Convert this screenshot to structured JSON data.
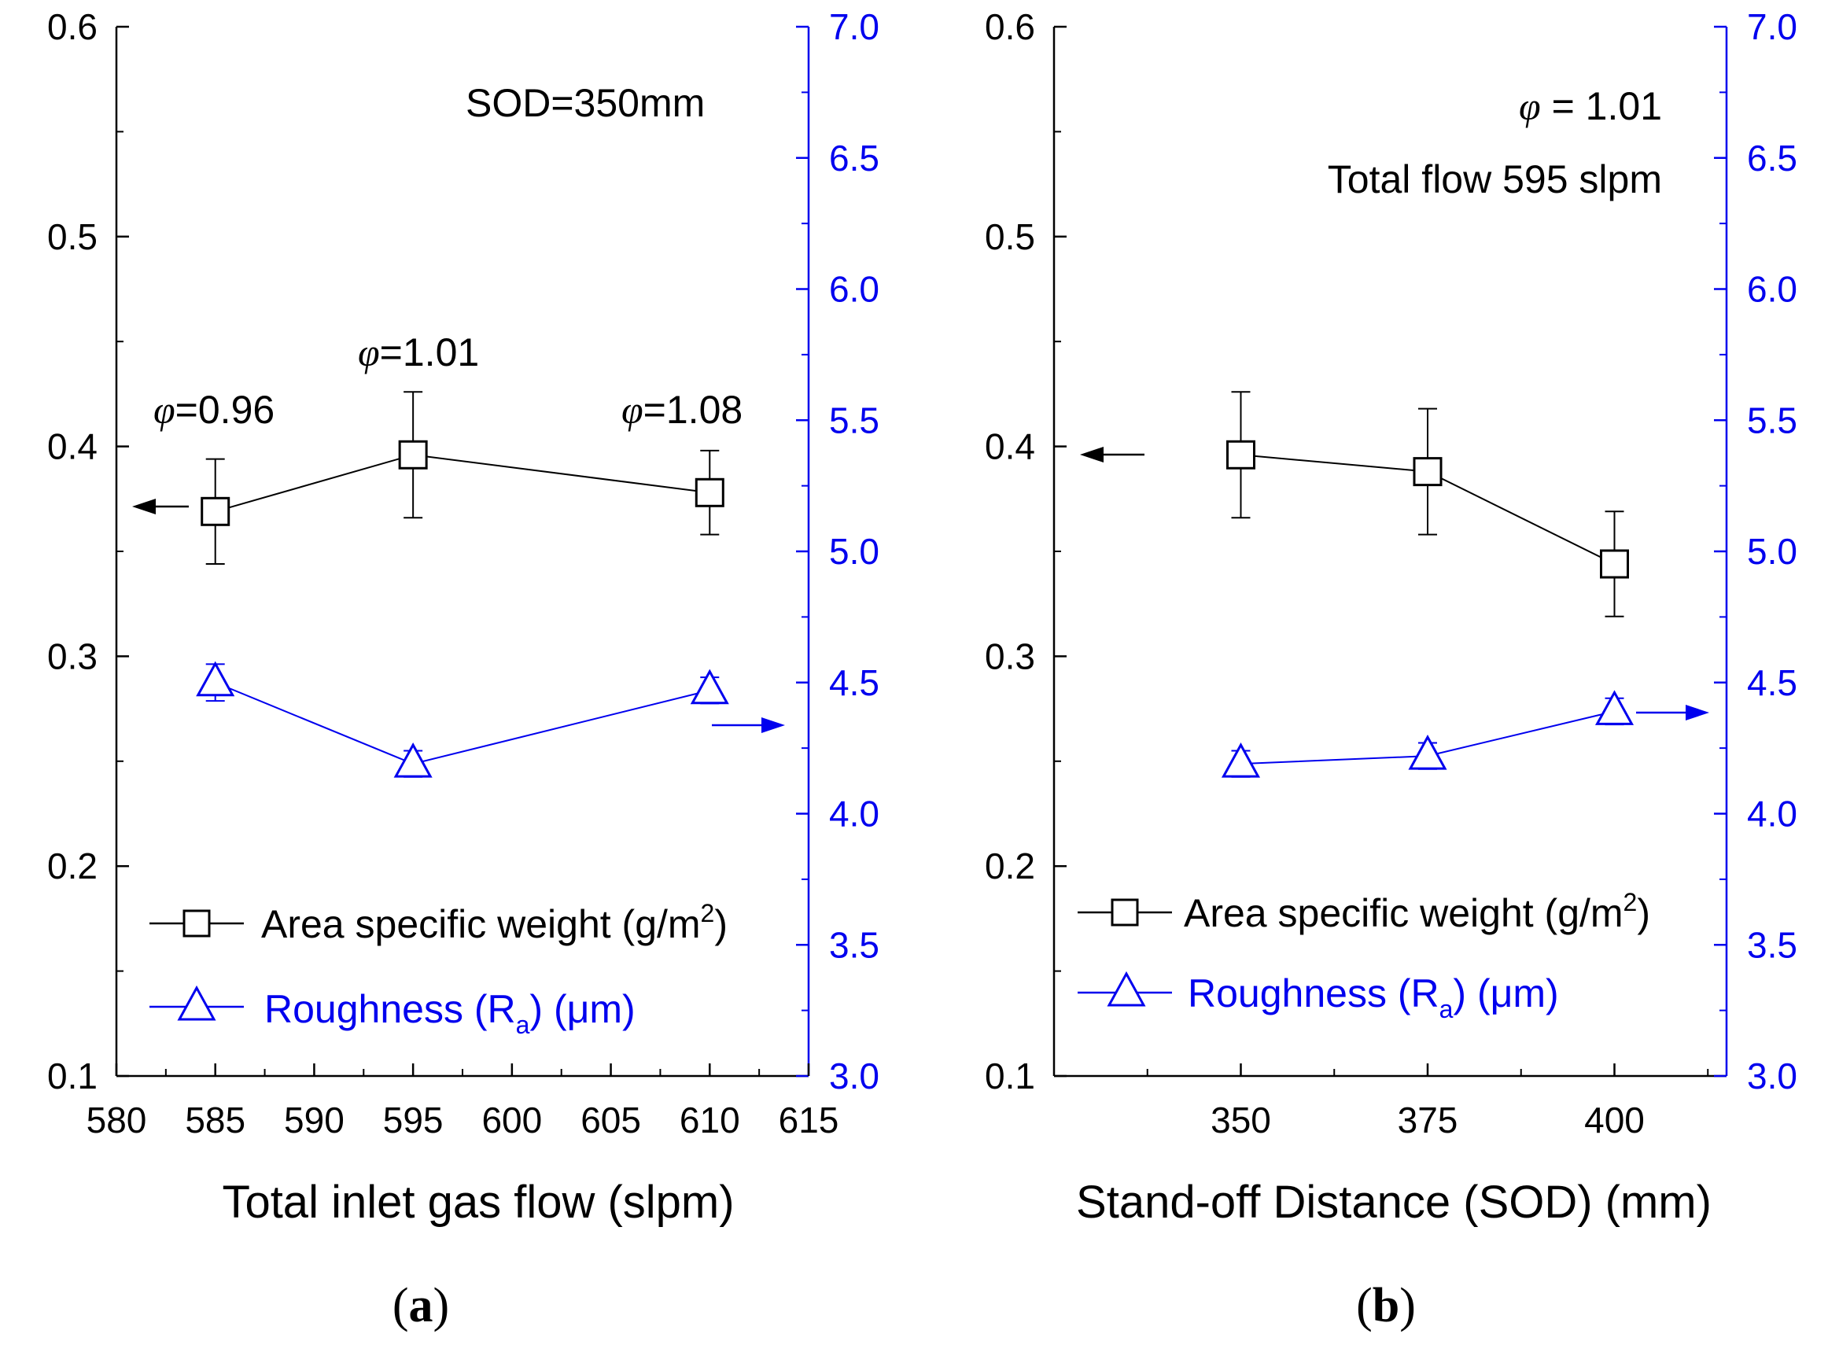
{
  "colors": {
    "left_axis": "#000000",
    "right_axis": "#0000ee",
    "weight_series": "#000000",
    "roughness_series": "#0000ee"
  },
  "chart_data": [
    {
      "type": "line",
      "panel": "a",
      "panel_tag_open": "(",
      "panel_tag_letter": "a",
      "panel_tag_close": ")",
      "xlabel": "Total inlet gas flow (slpm)",
      "xlim": [
        580,
        615
      ],
      "xticks": [
        580,
        585,
        590,
        595,
        600,
        605,
        610,
        615
      ],
      "xtick_labels": [
        "580",
        "585",
        "590",
        "595",
        "600",
        "605",
        "610",
        "615"
      ],
      "ylim_left": [
        0.1,
        0.6
      ],
      "yticks_left": [
        "0.1",
        "0.2",
        "0.3",
        "0.4",
        "0.5",
        "0.6"
      ],
      "ylim_right": [
        3.0,
        7.0
      ],
      "yticks_right": [
        "3.0",
        "3.5",
        "4.0",
        "4.5",
        "5.0",
        "5.5",
        "6.0",
        "6.5",
        "7.0"
      ],
      "series": [
        {
          "name": "Area specific weight",
          "axis": "left",
          "marker": "square",
          "x": [
            585,
            595,
            610
          ],
          "y": [
            0.369,
            0.396,
            0.378
          ],
          "err": [
            0.025,
            0.03,
            0.02
          ]
        },
        {
          "name": "Roughness",
          "axis": "right",
          "marker": "triangle",
          "x": [
            585,
            595,
            610
          ],
          "y": [
            4.5,
            4.19,
            4.47
          ],
          "err": [
            0.07,
            0.05,
            0.05
          ]
        }
      ],
      "annotations": [
        {
          "symbol": "φ",
          "text": "=0.96"
        },
        {
          "symbol": "φ",
          "text": "=1.01"
        },
        {
          "symbol": "φ",
          "text": "=1.08"
        },
        {
          "symbol": "",
          "text": "SOD=350mm"
        }
      ],
      "legend": {
        "weight_label": "Area specific weight (g/m",
        "weight_sup": "2",
        "weight_close": ")",
        "rough_label": "Roughness (R",
        "rough_sub": "a",
        "rough_close": ") (μm)"
      }
    },
    {
      "type": "line",
      "panel": "b",
      "panel_tag_open": "(",
      "panel_tag_letter": "b",
      "panel_tag_close": ")",
      "xlabel": "Stand-off Distance (SOD) (mm)",
      "xlim": [
        325,
        415
      ],
      "xticks": [
        350,
        375,
        400
      ],
      "xtick_labels": [
        "350",
        "375",
        "400"
      ],
      "ylim_left": [
        0.1,
        0.6
      ],
      "yticks_left": [
        "0.1",
        "0.2",
        "0.3",
        "0.4",
        "0.5",
        "0.6"
      ],
      "ylim_right": [
        3.0,
        7.0
      ],
      "yticks_right": [
        "3.0",
        "3.5",
        "4.0",
        "4.5",
        "5.0",
        "5.5",
        "6.0",
        "6.5",
        "7.0"
      ],
      "series": [
        {
          "name": "Area specific weight",
          "axis": "left",
          "marker": "square",
          "x": [
            350,
            375,
            400
          ],
          "y": [
            0.396,
            0.388,
            0.344
          ],
          "err": [
            0.03,
            0.03,
            0.025
          ]
        },
        {
          "name": "Roughness",
          "axis": "right",
          "marker": "triangle",
          "x": [
            350,
            375,
            400
          ],
          "y": [
            4.19,
            4.22,
            4.39
          ],
          "err": [
            0.05,
            0.05,
            0.05
          ]
        }
      ],
      "annotations": [
        {
          "symbol": "φ",
          "text": " = 1.01"
        },
        {
          "symbol": "",
          "text": "Total flow 595 slpm"
        }
      ],
      "legend": {
        "weight_label": "Area specific weight (g/m",
        "weight_sup": "2",
        "weight_close": ")",
        "rough_label": "Roughness (R",
        "rough_sub": "a",
        "rough_close": ") (μm)"
      }
    }
  ]
}
